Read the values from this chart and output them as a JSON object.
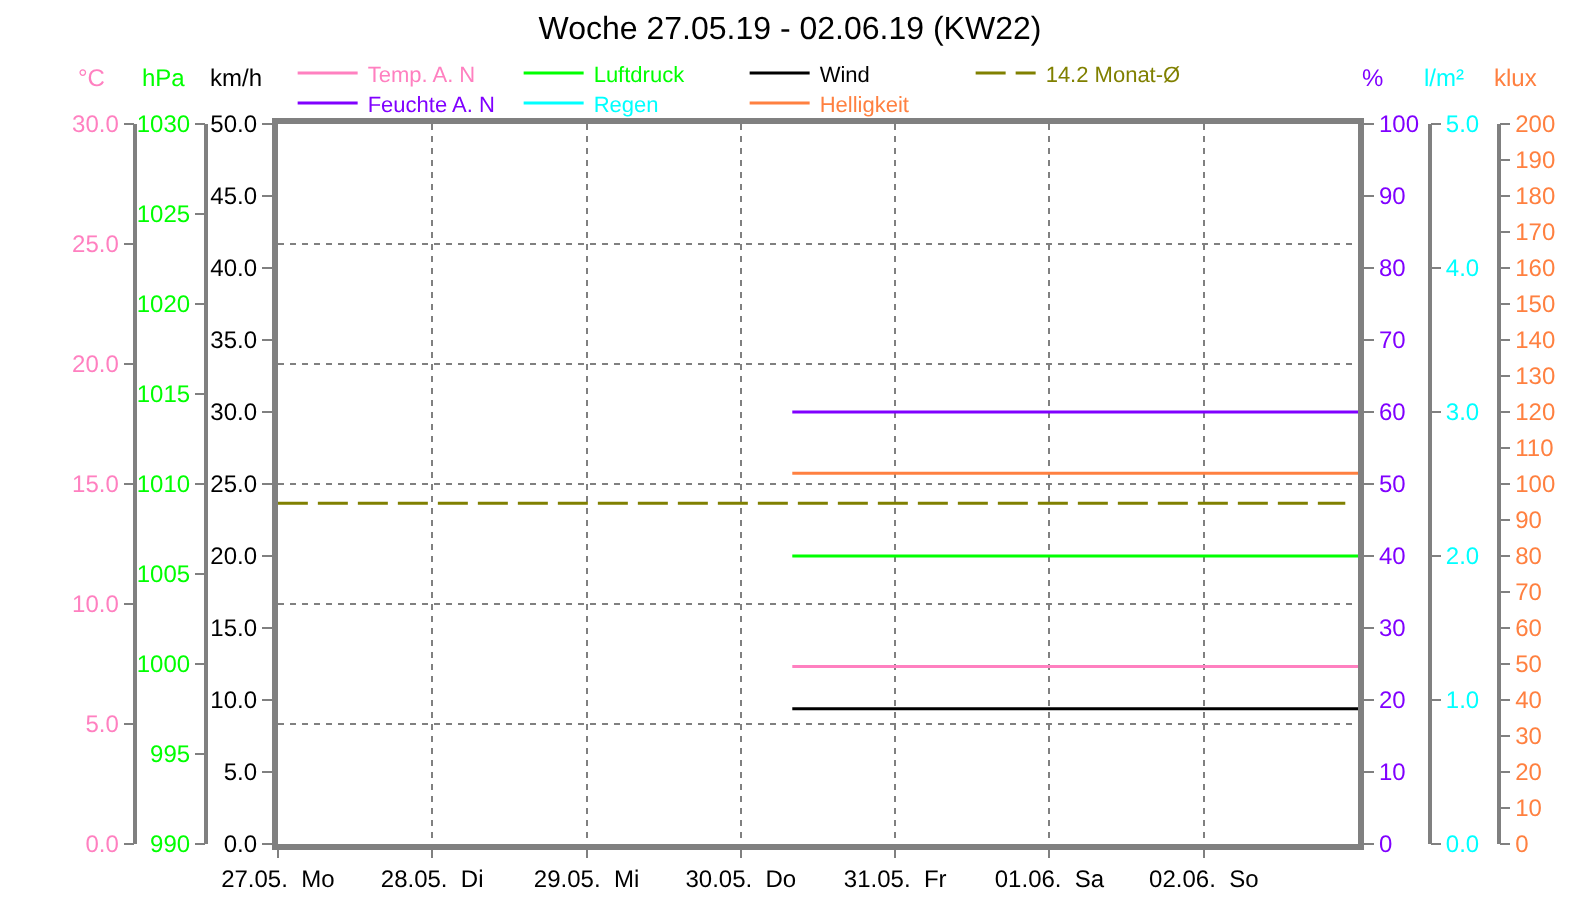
{
  "chart_data": [
    {
      "type": "line",
      "title": "Woche 27.05.19 - 02.06.19 (KW22)",
      "xlim": [
        "--05-27T00:00",
        "--06-03T00:00"
      ],
      "xticks": [
        {
          "value": "--05-27T00:00",
          "label": "27.05.  Mo"
        },
        {
          "value": "--05-28T00:00",
          "label": "28.05.  Di"
        },
        {
          "value": "--05-29T00:00",
          "label": "29.05.  Mi"
        },
        {
          "value": "--05-30T00:00",
          "label": "30.05.  Do"
        },
        {
          "value": "--05-31T00:00",
          "label": "31.05.  Fr"
        },
        {
          "value": "--06-01T00:00",
          "label": "01.06.  Sa"
        },
        {
          "value": "--06-02T00:00",
          "label": "02.06.  So"
        }
      ],
      "ylabel": "km/h",
      "ylim": [
        0,
        50
      ],
      "yticks": [
        {
          "value": 0,
          "label": "0.0"
        },
        {
          "value": 5,
          "label": "5.0"
        },
        {
          "value": 10,
          "label": "10.0"
        },
        {
          "value": 15,
          "label": "15.0"
        },
        {
          "value": 20,
          "label": "20.0"
        },
        {
          "value": 25,
          "label": "25.0"
        },
        {
          "value": 30,
          "label": "30.0"
        },
        {
          "value": 35,
          "label": "35.0"
        },
        {
          "value": 40,
          "label": "40.0"
        },
        {
          "value": 45,
          "label": "45.0"
        },
        {
          "value": 50,
          "label": "50.0"
        }
      ],
      "y2label": "°C",
      "y2lim": [
        0,
        30
      ],
      "y2ticks": [
        {
          "value": 0,
          "label": "0.0"
        },
        {
          "value": 5,
          "label": "5.0"
        },
        {
          "value": 10,
          "label": "10.0"
        },
        {
          "value": 15,
          "label": "15.0"
        },
        {
          "value": 20,
          "label": "20.0"
        },
        {
          "value": 25,
          "label": "25.0"
        },
        {
          "value": 30,
          "label": "30.0"
        }
      ],
      "y3label": "hPa",
      "y3lim": [
        990,
        1030
      ],
      "y3ticks": [
        990,
        995,
        1000,
        1005,
        1010,
        1015,
        1020,
        1025,
        1030
      ],
      "grid": true,
      "legend": "top",
      "marker": "none",
      "series": [
        {
          "name": "Temp. A. N",
          "color": "#ff80c0",
          "axis": "y2",
          "x": [
            "--05-30T08:00",
            "--06-03T00:00"
          ],
          "values": [
            7.4,
            7.4
          ]
        },
        {
          "name": "Luftdruck",
          "color": "#00ff00",
          "axis": "y3",
          "x": [
            "--05-30T08:00",
            "--06-03T00:00"
          ],
          "values": [
            1006,
            1006
          ]
        },
        {
          "name": "Wind",
          "color": "#000000",
          "x": [
            "--05-30T08:00",
            "--06-03T00:00"
          ],
          "values": [
            9.4,
            9.4
          ]
        },
        {
          "name": "14.2 Monat-Ø",
          "color": "#808000",
          "axis": "y2",
          "line_style": "dashed",
          "x": [
            "--05-27T00:00",
            "--06-02T22:00"
          ],
          "values": [
            14.2,
            14.2
          ]
        }
      ]
    },
    {
      "type": "line",
      "tick_labels": "y",
      "xlim": [
        "--05-27T00:00",
        "--06-03T00:00"
      ],
      "ylabel": "%",
      "ylim": [
        0,
        100
      ],
      "yticks": [
        0,
        10,
        20,
        30,
        40,
        50,
        60,
        70,
        80,
        90,
        100
      ],
      "y2label": "l/m²",
      "y2lim": [
        0,
        5
      ],
      "y2ticks": [
        {
          "value": 0,
          "label": "0.0"
        },
        {
          "value": 1,
          "label": "1.0"
        },
        {
          "value": 2,
          "label": "2.0"
        },
        {
          "value": 3,
          "label": "3.0"
        },
        {
          "value": 4,
          "label": "4.0"
        },
        {
          "value": 5,
          "label": "5.0"
        }
      ],
      "y3label": "klux",
      "y3lim": [
        0,
        200
      ],
      "y3ticks": [
        0,
        10,
        20,
        30,
        40,
        50,
        60,
        70,
        80,
        90,
        100,
        110,
        120,
        130,
        140,
        150,
        160,
        170,
        180,
        190,
        200
      ],
      "legend": "top",
      "marker": "none",
      "series": [
        {
          "name": "Feuchte A. N",
          "color": "#8000ff",
          "x": [
            "--05-30T08:00",
            "--06-03T00:00"
          ],
          "values": [
            60,
            60
          ]
        },
        {
          "name": "Regen",
          "color": "#00ffff",
          "axis": "y2",
          "values": [
            null,
            null
          ]
        },
        {
          "name": "Helligkeit",
          "color": "#ff8040",
          "axis": "y3",
          "x": [
            "--05-30T08:00",
            "--06-03T00:00"
          ],
          "values": [
            103,
            103
          ]
        }
      ]
    }
  ]
}
